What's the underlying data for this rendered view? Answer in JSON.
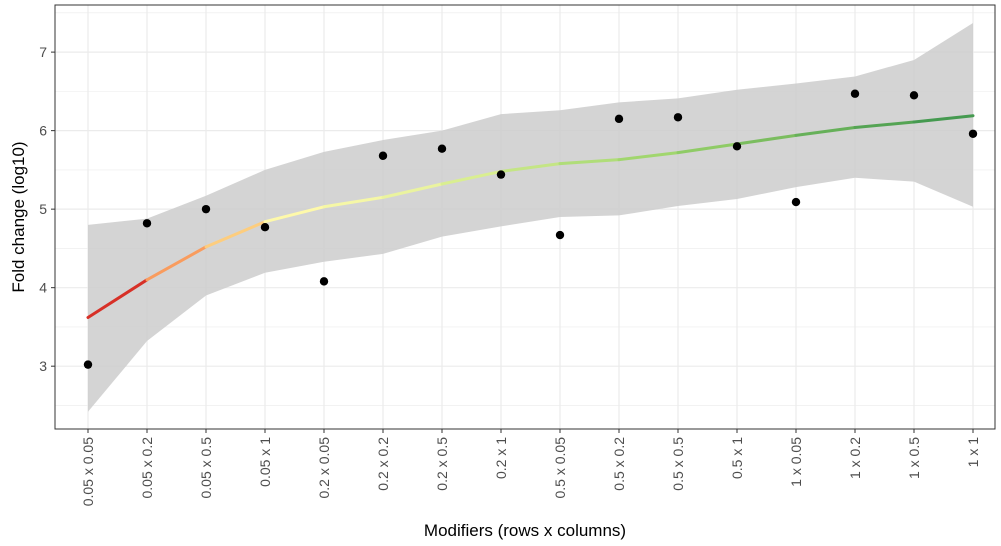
{
  "chart_data": {
    "type": "scatter",
    "title": "",
    "xlabel": "Modifiers (rows x columns)",
    "ylabel": "Fold change (log10)",
    "categories": [
      "0.05 x 0.05",
      "0.05 x 0.2",
      "0.05 x 0.5",
      "0.05 x 1",
      "0.2 x 0.05",
      "0.2 x 0.2",
      "0.2 x 0.5",
      "0.2 x 1",
      "0.5 x 0.05",
      "0.5 x 0.2",
      "0.5 x 0.5",
      "0.5 x 1",
      "1 x 0.05",
      "1 x 0.2",
      "1 x 0.5",
      "1 x 1"
    ],
    "y_ticks": [
      3,
      4,
      5,
      6,
      7
    ],
    "ylim": [
      2.2,
      7.6
    ],
    "grid": true,
    "legend": "none",
    "points": [
      3.02,
      4.82,
      5.0,
      4.77,
      4.08,
      5.68,
      5.77,
      5.44,
      4.67,
      6.15,
      6.17,
      5.8,
      5.09,
      6.47,
      6.45,
      5.96
    ],
    "trend": {
      "values": [
        3.62,
        4.1,
        4.52,
        4.84,
        5.03,
        5.15,
        5.32,
        5.48,
        5.58,
        5.63,
        5.72,
        5.83,
        5.94,
        6.04,
        6.11,
        6.19
      ],
      "ci_lower": [
        2.42,
        3.32,
        3.9,
        4.19,
        4.33,
        4.43,
        4.65,
        4.78,
        4.9,
        4.92,
        5.04,
        5.13,
        5.28,
        5.4,
        5.35,
        5.03
      ],
      "ci_upper": [
        4.8,
        4.88,
        5.17,
        5.5,
        5.73,
        5.88,
        6.0,
        6.21,
        6.26,
        6.36,
        6.41,
        6.52,
        6.6,
        6.69,
        6.9,
        7.37
      ],
      "segment_colors": [
        "#d73027",
        "#f99c5e",
        "#fdcd7e",
        "#fef9aa",
        "#f5f7a6",
        "#eaf39f",
        "#d9ee91",
        "#c4e585",
        "#b0dd79",
        "#a1d66e",
        "#8fcb66",
        "#7bbd5f",
        "#66b059",
        "#55a454",
        "#459a50"
      ]
    },
    "colors": {
      "ribbon": "#cccccc",
      "point": "#000000",
      "grid": "#ebebeb",
      "panel_border": "#333333"
    }
  }
}
